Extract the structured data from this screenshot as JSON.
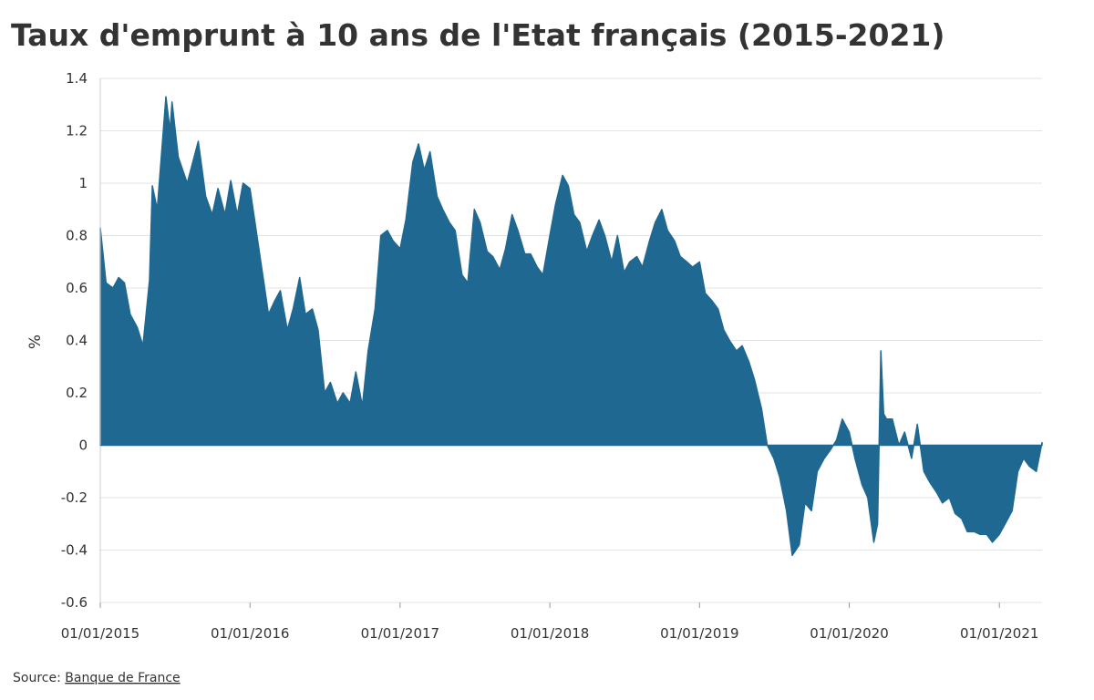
{
  "chart_data": {
    "type": "area",
    "title": "Taux d'emprunt à 10 ans de l'Etat français (2015-2021)",
    "y_label": "%",
    "source_label": "Source:",
    "source": "Banque de France",
    "color": "#1f6891",
    "grid": true,
    "x": [
      "01/01/2015",
      "15/01/2015",
      "01/02/2015",
      "15/02/2015",
      "01/03/2015",
      "15/03/2015",
      "01/04/2015",
      "15/04/2015",
      "01/05/2015",
      "08/05/2015",
      "20/05/2015",
      "10/06/2015",
      "20/06/2015",
      "25/06/2015",
      "10/07/2015",
      "01/08/2015",
      "28/08/2015",
      "15/09/2015",
      "01/10/2015",
      "15/10/2015",
      "01/11/2015",
      "15/11/2015",
      "01/12/2015",
      "15/12/2015",
      "01/01/2016",
      "01/02/2016",
      "15/02/2016",
      "01/03/2016",
      "15/03/2016",
      "01/04/2016",
      "15/04/2016",
      "01/05/2016",
      "15/05/2016",
      "01/06/2016",
      "15/06/2016",
      "01/07/2016",
      "15/07/2016",
      "01/08/2016",
      "15/08/2016",
      "01/09/2016",
      "15/09/2016",
      "01/10/2016",
      "15/10/2016",
      "01/11/2016",
      "15/11/2016",
      "01/12/2016",
      "15/12/2016",
      "01/01/2017",
      "15/01/2017",
      "01/02/2017",
      "15/02/2017",
      "01/03/2017",
      "15/03/2017",
      "01/04/2017",
      "15/04/2017",
      "01/05/2017",
      "15/05/2017",
      "01/06/2017",
      "15/06/2017",
      "01/07/2017",
      "15/07/2017",
      "01/08/2017",
      "15/08/2017",
      "01/09/2017",
      "15/09/2017",
      "01/10/2017",
      "15/10/2017",
      "01/11/2017",
      "15/11/2017",
      "01/12/2017",
      "15/12/2017",
      "01/01/2018",
      "15/01/2018",
      "01/02/2018",
      "15/02/2018",
      "01/03/2018",
      "15/03/2018",
      "01/04/2018",
      "15/04/2018",
      "01/05/2018",
      "15/05/2018",
      "01/06/2018",
      "15/06/2018",
      "01/07/2018",
      "15/07/2018",
      "01/08/2018",
      "15/08/2018",
      "01/09/2018",
      "15/09/2018",
      "01/10/2018",
      "15/10/2018",
      "01/11/2018",
      "15/11/2018",
      "01/12/2018",
      "15/12/2018",
      "01/01/2019",
      "15/01/2019",
      "01/02/2019",
      "15/02/2019",
      "01/03/2019",
      "15/03/2019",
      "01/04/2019",
      "15/04/2019",
      "01/05/2019",
      "15/05/2019",
      "01/06/2019",
      "15/06/2019",
      "01/07/2019",
      "15/07/2019",
      "01/08/2019",
      "15/08/2019",
      "01/09/2019",
      "15/09/2019",
      "01/10/2019",
      "15/10/2019",
      "01/11/2019",
      "15/11/2019",
      "01/12/2019",
      "15/12/2019",
      "01/01/2020",
      "15/01/2020",
      "01/02/2020",
      "15/02/2020",
      "01/03/2020",
      "10/03/2020",
      "18/03/2020",
      "25/03/2020",
      "01/04/2020",
      "15/04/2020",
      "01/05/2020",
      "15/05/2020",
      "01/06/2020",
      "15/06/2020",
      "01/07/2020",
      "15/07/2020",
      "01/08/2020",
      "15/08/2020",
      "01/09/2020",
      "15/09/2020",
      "01/10/2020",
      "15/10/2020",
      "01/11/2020",
      "15/11/2020",
      "01/12/2020",
      "15/12/2020",
      "01/01/2021",
      "15/01/2021",
      "01/02/2021",
      "15/02/2021",
      "01/03/2021",
      "15/03/2021",
      "01/04/2021",
      "15/04/2021"
    ],
    "values": [
      0.83,
      0.62,
      0.6,
      0.64,
      0.62,
      0.5,
      0.45,
      0.38,
      0.63,
      0.99,
      0.9,
      1.33,
      1.2,
      1.31,
      1.1,
      1.0,
      1.16,
      0.95,
      0.88,
      0.98,
      0.88,
      1.01,
      0.88,
      1.0,
      0.98,
      0.65,
      0.5,
      0.55,
      0.59,
      0.44,
      0.52,
      0.64,
      0.5,
      0.52,
      0.44,
      0.2,
      0.24,
      0.16,
      0.2,
      0.16,
      0.28,
      0.15,
      0.36,
      0.52,
      0.8,
      0.82,
      0.78,
      0.75,
      0.86,
      1.08,
      1.15,
      1.05,
      1.12,
      0.95,
      0.9,
      0.85,
      0.82,
      0.65,
      0.62,
      0.9,
      0.85,
      0.74,
      0.72,
      0.67,
      0.75,
      0.88,
      0.82,
      0.73,
      0.73,
      0.68,
      0.65,
      0.8,
      0.92,
      1.03,
      0.99,
      0.88,
      0.85,
      0.74,
      0.8,
      0.86,
      0.8,
      0.7,
      0.8,
      0.66,
      0.7,
      0.72,
      0.68,
      0.78,
      0.85,
      0.9,
      0.82,
      0.78,
      0.72,
      0.7,
      0.68,
      0.7,
      0.58,
      0.55,
      0.52,
      0.44,
      0.4,
      0.36,
      0.38,
      0.32,
      0.25,
      0.14,
      0.0,
      -0.05,
      -0.12,
      -0.25,
      -0.42,
      -0.38,
      -0.22,
      -0.25,
      -0.1,
      -0.05,
      -0.02,
      0.02,
      0.1,
      0.05,
      -0.05,
      -0.15,
      -0.2,
      -0.37,
      -0.3,
      0.36,
      0.12,
      0.1,
      0.1,
      0.0,
      0.05,
      -0.05,
      0.08,
      -0.1,
      -0.14,
      -0.18,
      -0.22,
      -0.2,
      -0.26,
      -0.28,
      -0.33,
      -0.33,
      -0.34,
      -0.34,
      -0.37,
      -0.34,
      -0.3,
      -0.25,
      -0.1,
      -0.05,
      -0.08,
      -0.1,
      0.01
    ],
    "xlim": [
      "01/01/2015",
      "15/04/2021"
    ],
    "xticks": [
      "01/01/2015",
      "01/01/2016",
      "01/01/2017",
      "01/01/2018",
      "01/01/2019",
      "01/01/2020",
      "01/01/2021"
    ],
    "ylim": [
      -0.6,
      1.4
    ],
    "yticks": [
      -0.6,
      -0.4,
      -0.2,
      0,
      0.2,
      0.4,
      0.6,
      0.8,
      1,
      1.2,
      1.4
    ]
  }
}
